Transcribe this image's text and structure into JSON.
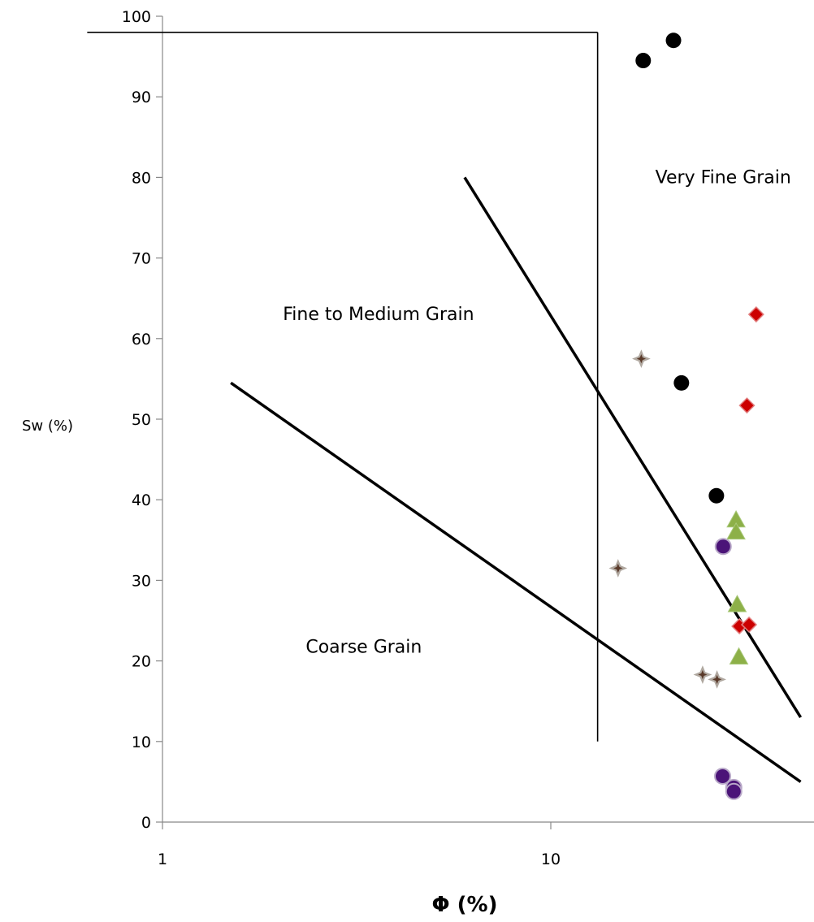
{
  "chart_data": {
    "type": "scatter",
    "title": "",
    "xlabel": "Φ (%)",
    "ylabel": "Sw (%)",
    "x_scale": "log",
    "xlim": [
      1,
      44
    ],
    "ylim": [
      0,
      100
    ],
    "x_ticks": [
      {
        "value": 1,
        "label": "1"
      },
      {
        "value": 10,
        "label": "10"
      }
    ],
    "y_ticks": [
      {
        "value": 0,
        "label": "0"
      },
      {
        "value": 10,
        "label": "10"
      },
      {
        "value": 20,
        "label": "20"
      },
      {
        "value": 30,
        "label": "30"
      },
      {
        "value": 40,
        "label": "40"
      },
      {
        "value": 50,
        "label": "50"
      },
      {
        "value": 60,
        "label": "60"
      },
      {
        "value": 70,
        "label": "70"
      },
      {
        "value": 80,
        "label": "80"
      },
      {
        "value": 90,
        "label": "90"
      },
      {
        "value": 100,
        "label": "100"
      }
    ],
    "grid": false,
    "legend": "none",
    "series": [
      {
        "marker": "circle",
        "color": "#000000",
        "points": [
          [
            17.3,
            94.5
          ],
          [
            20.7,
            97
          ],
          [
            21.7,
            54.5
          ],
          [
            26.7,
            40.5
          ]
        ]
      },
      {
        "marker": "diamond",
        "color": "#cc0000",
        "points": [
          [
            33.8,
            63
          ],
          [
            32.0,
            51.7
          ],
          [
            30.6,
            24.3
          ],
          [
            32.4,
            24.5
          ]
        ]
      },
      {
        "marker": "star",
        "color": "#5a3a2a",
        "points": [
          [
            17.1,
            57.5
          ],
          [
            14.9,
            31.5
          ],
          [
            24.6,
            18.3
          ],
          [
            26.8,
            17.7
          ]
        ]
      },
      {
        "marker": "triangle",
        "color": "#8db048",
        "points": [
          [
            30.0,
            37.5
          ],
          [
            30.0,
            36.0
          ],
          [
            30.2,
            27.0
          ],
          [
            30.5,
            20.5
          ]
        ]
      },
      {
        "marker": "circle",
        "color": "#4b1478",
        "points": [
          [
            27.8,
            34.2
          ],
          [
            27.7,
            5.7
          ],
          [
            29.6,
            4.3
          ],
          [
            29.6,
            3.8
          ]
        ]
      }
    ],
    "boundary_lines": [
      {
        "name": "upper",
        "points": [
          [
            6.0,
            80
          ],
          [
            44,
            13
          ]
        ]
      },
      {
        "name": "lower",
        "points": [
          [
            1.5,
            54.5
          ],
          [
            44,
            5
          ]
        ]
      },
      {
        "name": "top-horizontal",
        "points": [
          [
            0.64,
            98
          ],
          [
            13.2,
            98
          ]
        ]
      },
      {
        "name": "vertical",
        "points": [
          [
            13.2,
            98
          ],
          [
            13.2,
            10
          ]
        ]
      }
    ],
    "annotations": [
      {
        "text": "Very Fine Grain",
        "x": 27.8,
        "y": 79.3
      },
      {
        "text": "Fine to Medium Grain",
        "x": 3.6,
        "y": 62.3
      },
      {
        "text": "Coarse  Grain",
        "x": 3.3,
        "y": 21.0
      }
    ]
  }
}
